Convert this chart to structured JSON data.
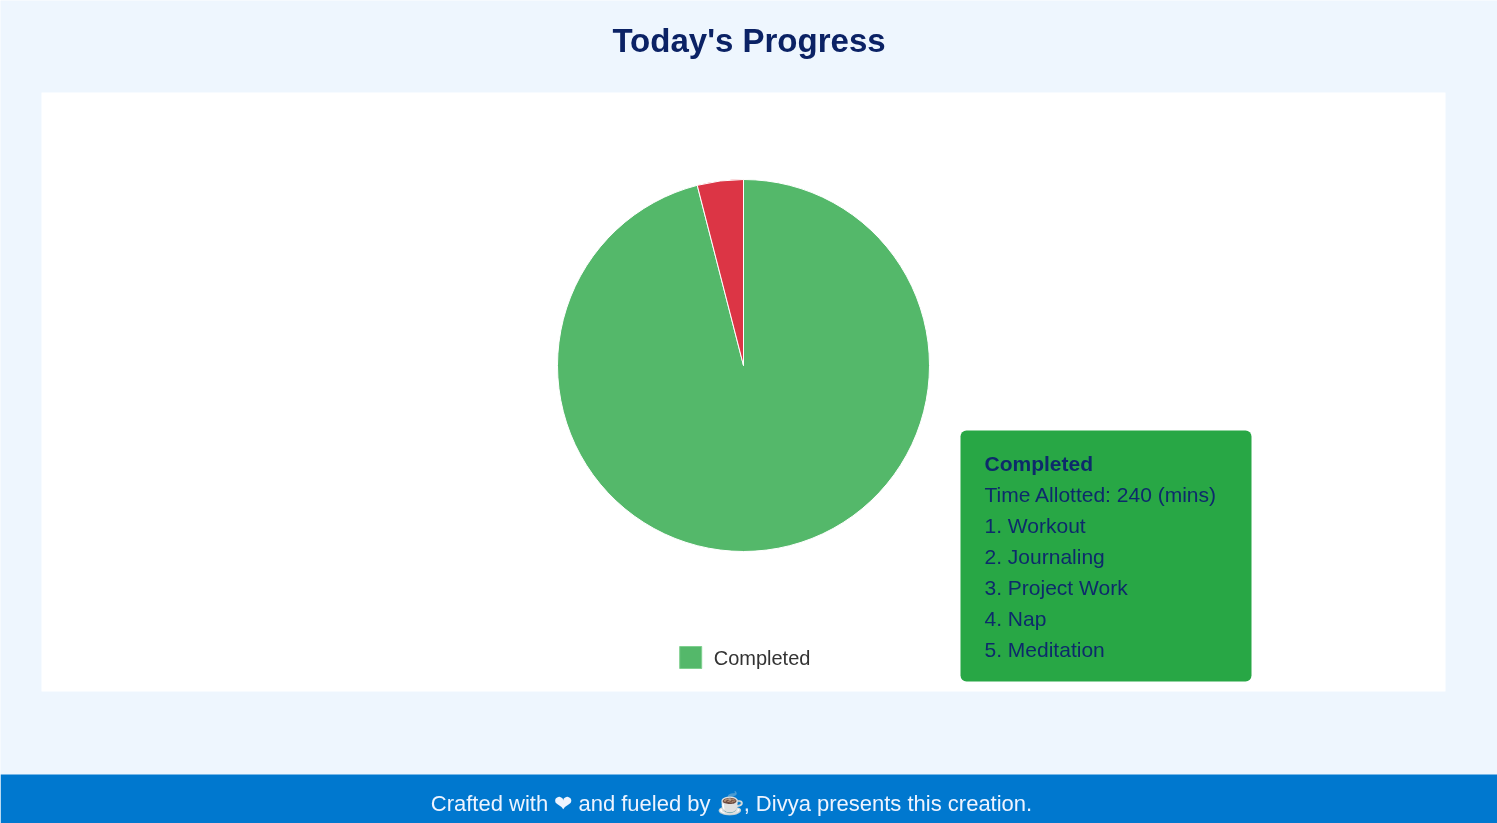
{
  "chart_data": {
    "type": "pie",
    "title": "Today's Progress",
    "categories": [
      "Completed",
      null
    ],
    "values": [
      96,
      4
    ],
    "colors": [
      "#54b86a",
      "#dc3545"
    ],
    "legend": "bottom",
    "annotations": [
      "Completed",
      "Time Allotted: 240 (mins)",
      "1. Workout",
      "2. Journaling",
      "3. Project Work",
      "4. Nap",
      "5. Meditation",
      "Crafted with ❤ and fueled by ☕, Divya presents this creation."
    ]
  }
}
